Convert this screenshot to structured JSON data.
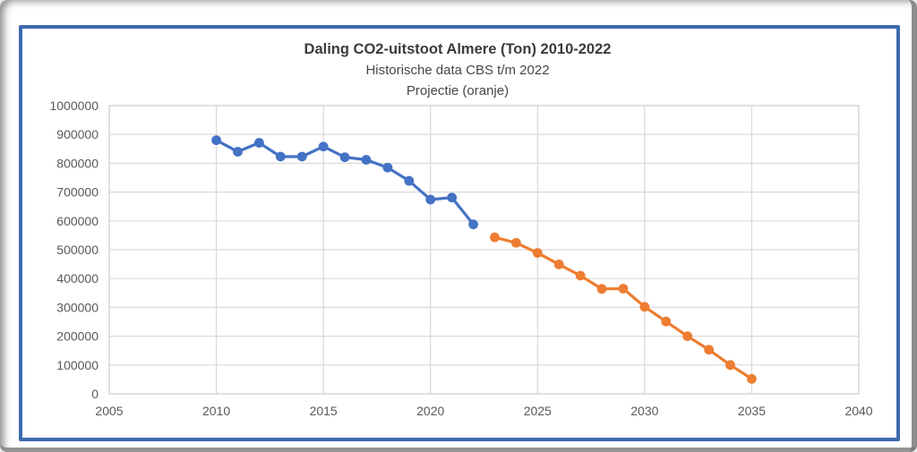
{
  "figure": {
    "title": "Daling CO2-uitstoot Almere (Ton) 2010-2022",
    "subtitle": "Historische data CBS t/m 2022",
    "annotation": "Projectie (oranje)"
  },
  "colors": {
    "frame_border": "#3E6BAE",
    "gridline": "#D9D9D9",
    "plot_border": "#D2D2D2",
    "tick_text": "#595959",
    "historical_blue": "#4472C4",
    "projection_orange": "#ED7D31"
  },
  "chart_data": {
    "type": "line",
    "title": "Daling CO2-uitstoot Almere (Ton) 2010-2022",
    "subtitle": "Historische data CBS t/m 2022",
    "annotation": "Projectie (oranje)",
    "xlabel": "",
    "ylabel": "",
    "xlim": [
      2005,
      2040
    ],
    "ylim": [
      0,
      1000000
    ],
    "x_tick_step": 5,
    "y_tick_step": 100000,
    "grid": true,
    "legend": "none",
    "series": [
      {
        "name": "Historische data CBS",
        "color": "#4472C4",
        "marker": "circle",
        "x": [
          2010,
          2011,
          2012,
          2013,
          2014,
          2015,
          2016,
          2017,
          2018,
          2019,
          2020,
          2021,
          2022
        ],
        "values": [
          880000,
          840000,
          871000,
          823000,
          823000,
          858000,
          821000,
          812000,
          785000,
          739000,
          674000,
          681000,
          588000
        ]
      },
      {
        "name": "Projectie",
        "color": "#ED7D31",
        "marker": "circle",
        "x": [
          2023,
          2024,
          2025,
          2026,
          2027,
          2028,
          2029,
          2030,
          2031,
          2032,
          2033,
          2034,
          2035
        ],
        "values": [
          543000,
          524000,
          489000,
          449000,
          410000,
          364000,
          365000,
          302000,
          251000,
          200000,
          153000,
          100000,
          52000
        ]
      }
    ]
  }
}
